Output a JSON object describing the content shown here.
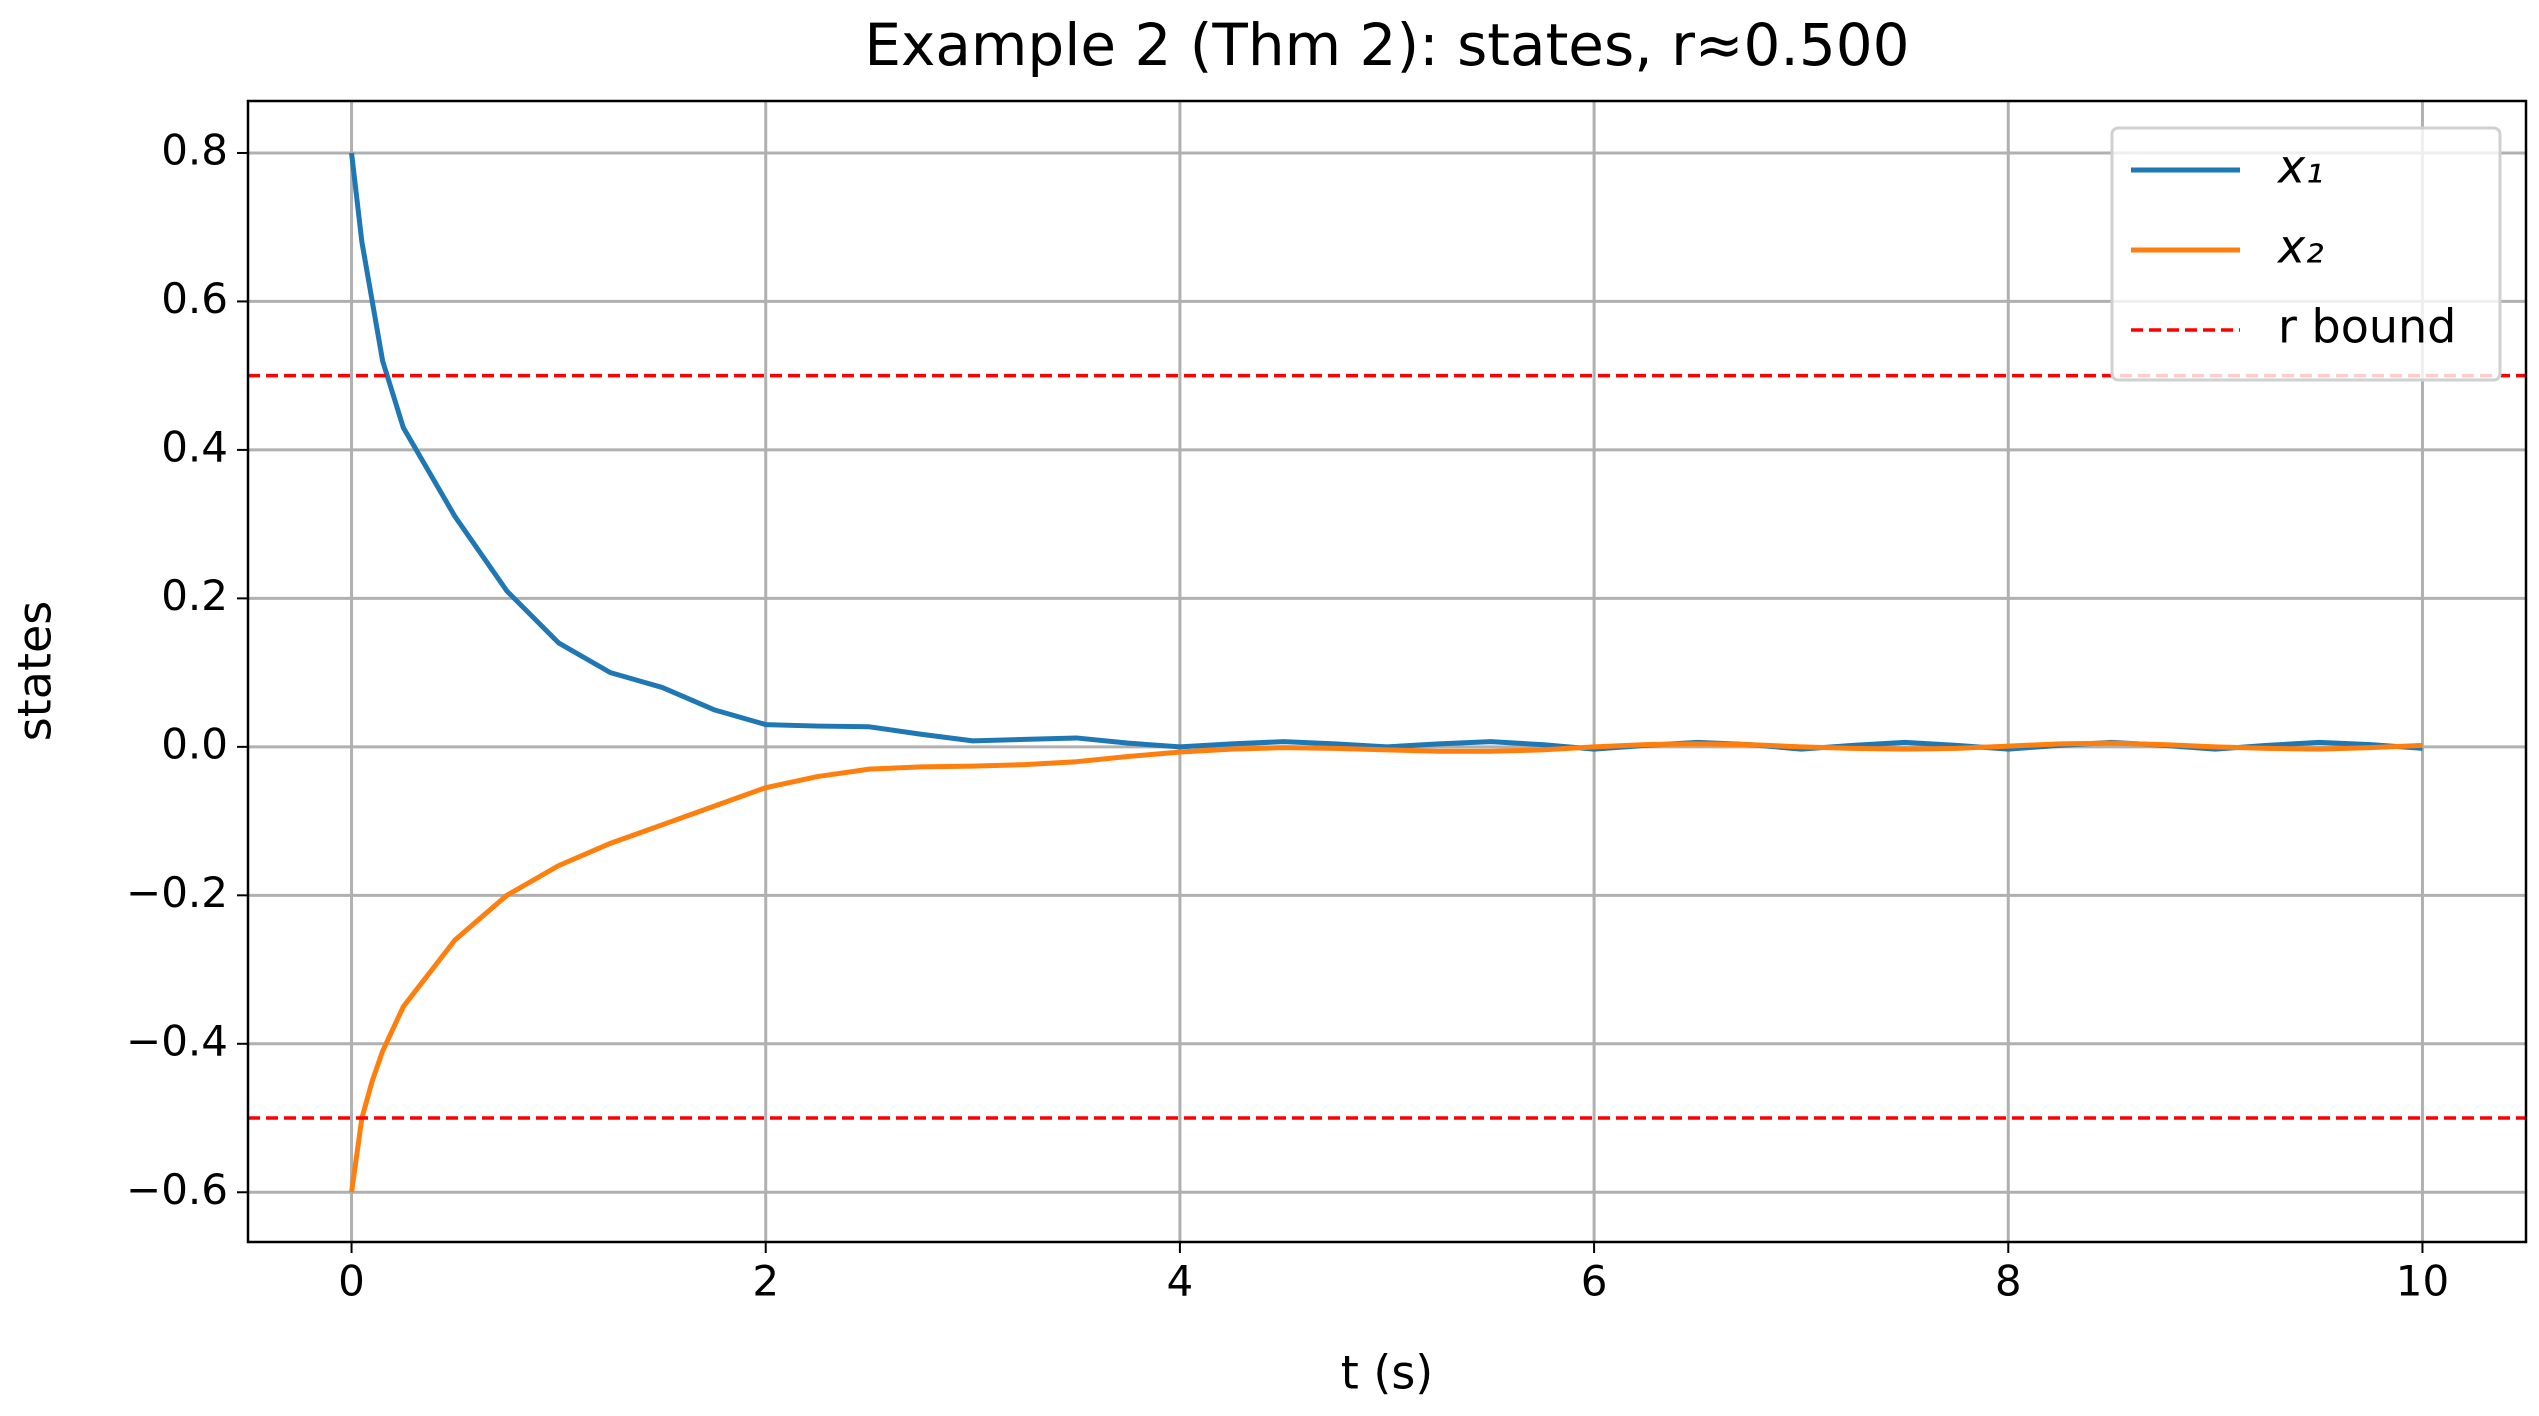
{
  "chart_data": {
    "type": "line",
    "title": "Example 2 (Thm 2): states, r≈0.500",
    "xlabel": "t (s)",
    "ylabel": "states",
    "x": [
      0,
      0.05,
      0.1,
      0.15,
      0.25,
      0.5,
      0.75,
      1.0,
      1.25,
      1.5,
      1.75,
      2.0,
      2.25,
      2.5,
      2.75,
      3.0,
      3.25,
      3.5,
      3.75,
      4.0,
      4.25,
      4.5,
      4.75,
      5.0,
      5.25,
      5.5,
      5.75,
      6.0,
      6.25,
      6.5,
      6.75,
      7.0,
      7.25,
      7.5,
      7.75,
      8.0,
      8.25,
      8.5,
      8.75,
      9.0,
      9.25,
      9.5,
      9.75,
      10
    ],
    "series": [
      {
        "name": "x₁",
        "color": "#1f77b4",
        "values": [
          0.8,
          0.68,
          0.6,
          0.52,
          0.43,
          0.31,
          0.21,
          0.14,
          0.1,
          0.08,
          0.05,
          0.03,
          0.028,
          0.027,
          0.017,
          0.008,
          0.01,
          0.012,
          0.005,
          0.0,
          0.004,
          0.007,
          0.004,
          0.0,
          0.004,
          0.007,
          0.003,
          -0.003,
          0.002,
          0.006,
          0.003,
          -0.003,
          0.002,
          0.006,
          0.002,
          -0.003,
          0.002,
          0.006,
          0.002,
          -0.003,
          0.002,
          0.006,
          0.003,
          -0.002
        ]
      },
      {
        "name": "x₂",
        "color": "#ff7f0e",
        "values": [
          -0.6,
          -0.5,
          -0.45,
          -0.41,
          -0.35,
          -0.26,
          -0.2,
          -0.16,
          -0.13,
          -0.105,
          -0.08,
          -0.055,
          -0.04,
          -0.03,
          -0.027,
          -0.026,
          -0.024,
          -0.02,
          -0.013,
          -0.007,
          -0.003,
          -0.001,
          -0.002,
          -0.004,
          -0.006,
          -0.006,
          -0.004,
          0.0,
          0.003,
          0.004,
          0.003,
          0.0,
          -0.002,
          -0.003,
          -0.002,
          0.001,
          0.004,
          0.005,
          0.003,
          0.0,
          -0.002,
          -0.003,
          -0.001,
          0.002
        ]
      }
    ],
    "hlines": {
      "name": "r bound",
      "color": "#ff0000",
      "values": [
        0.5,
        -0.5
      ]
    },
    "xlim": [
      -0.5,
      10.5
    ],
    "ylim": [
      -0.667,
      0.87
    ],
    "xticks": [
      0,
      2,
      4,
      6,
      8,
      10
    ],
    "yticks": [
      {
        "value": -0.6,
        "label": "−0.6"
      },
      {
        "value": -0.4,
        "label": "−0.4"
      },
      {
        "value": -0.2,
        "label": "−0.2"
      },
      {
        "value": 0,
        "label": "0.0"
      },
      0.2,
      0.4,
      0.6,
      0.8
    ],
    "grid": true,
    "legend": "upper right"
  }
}
